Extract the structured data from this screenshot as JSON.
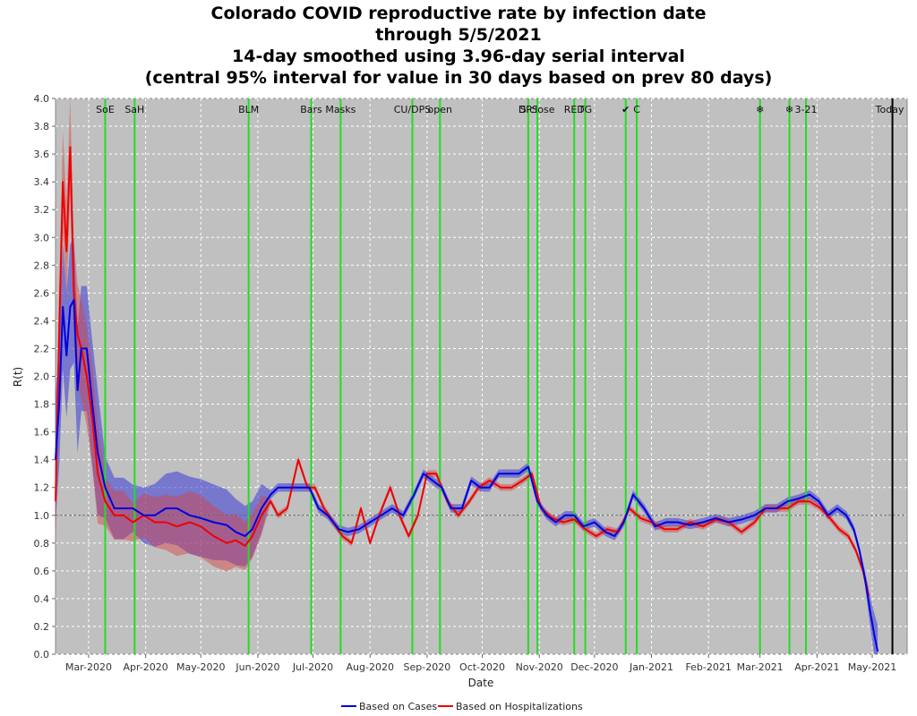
{
  "chart_data": {
    "type": "line",
    "title": "Colorado COVID reproductive rate by infection date",
    "subtitle_lines": [
      "through 5/5/2021",
      "14-day smoothed using 3.96-day serial interval",
      "(central 95% interval for value in 30 days based on prev 80 days)"
    ],
    "xlabel": "Date",
    "ylabel": "R(t)",
    "ylim": [
      0,
      4.0
    ],
    "xlim": [
      "2020-02-12",
      "2021-05-20"
    ],
    "y_ticks": [
      "0.0",
      "0.2",
      "0.4",
      "0.6",
      "0.8",
      "1.0",
      "1.2",
      "1.4",
      "1.6",
      "1.8",
      "2.0",
      "2.2",
      "2.4",
      "2.6",
      "2.8",
      "3.0",
      "3.2",
      "3.4",
      "3.6",
      "3.8",
      "4.0"
    ],
    "x_ticks": [
      {
        "date": "2020-03-01",
        "label": "Mar-2020"
      },
      {
        "date": "2020-04-01",
        "label": "Apr-2020"
      },
      {
        "date": "2020-05-01",
        "label": "May-2020"
      },
      {
        "date": "2020-06-01",
        "label": "Jun-2020"
      },
      {
        "date": "2020-07-01",
        "label": "Jul-2020"
      },
      {
        "date": "2020-08-01",
        "label": "Aug-2020"
      },
      {
        "date": "2020-09-01",
        "label": "Sep-2020"
      },
      {
        "date": "2020-10-01",
        "label": "Oct-2020"
      },
      {
        "date": "2020-11-01",
        "label": "Nov-2020"
      },
      {
        "date": "2020-12-01",
        "label": "Dec-2020"
      },
      {
        "date": "2021-01-01",
        "label": "Jan-2021"
      },
      {
        "date": "2021-02-01",
        "label": "Feb-2021"
      },
      {
        "date": "2021-03-01",
        "label": "Mar-2021"
      },
      {
        "date": "2021-04-01",
        "label": "Apr-2021"
      },
      {
        "date": "2021-05-01",
        "label": "May-2021"
      }
    ],
    "reference_line": 1.0,
    "grid": true,
    "legend_position": "bottom-center",
    "events": [
      {
        "date": "2020-03-10",
        "label": "SoE"
      },
      {
        "date": "2020-03-26",
        "label": "SaH"
      },
      {
        "date": "2020-05-27",
        "label": "BLM"
      },
      {
        "date": "2020-06-30",
        "label": "Bars"
      },
      {
        "date": "2020-07-16",
        "label": "Masks"
      },
      {
        "date": "2020-08-24",
        "label": "CU/DPS"
      },
      {
        "date": "2020-09-08",
        "label": "open"
      },
      {
        "date": "2020-10-26",
        "label": "DPS"
      },
      {
        "date": "2020-10-31",
        "label": "S close"
      },
      {
        "date": "2020-11-20",
        "label": "RED"
      },
      {
        "date": "2020-11-26",
        "label": "TG"
      },
      {
        "date": "2020-12-18",
        "label": "✔"
      },
      {
        "date": "2020-12-24",
        "label": "C"
      },
      {
        "date": "2021-03-01",
        "label": "❄"
      },
      {
        "date": "2021-03-17",
        "label": "❄"
      },
      {
        "date": "2021-03-26",
        "label": "3-21"
      }
    ],
    "today": {
      "date": "2021-05-12",
      "label": "Today"
    },
    "series": [
      {
        "name": "Based on Cases",
        "color": "#0000dd",
        "x": [
          "2020-02-12",
          "2020-02-14",
          "2020-02-16",
          "2020-02-18",
          "2020-02-20",
          "2020-02-22",
          "2020-02-24",
          "2020-02-26",
          "2020-02-29",
          "2020-03-03",
          "2020-03-06",
          "2020-03-10",
          "2020-03-15",
          "2020-03-20",
          "2020-03-25",
          "2020-03-31",
          "2020-04-06",
          "2020-04-12",
          "2020-04-18",
          "2020-04-25",
          "2020-05-01",
          "2020-05-08",
          "2020-05-15",
          "2020-05-20",
          "2020-05-25",
          "2020-05-29",
          "2020-06-03",
          "2020-06-08",
          "2020-06-12",
          "2020-06-17",
          "2020-06-23",
          "2020-06-29",
          "2020-07-04",
          "2020-07-09",
          "2020-07-15",
          "2020-07-20",
          "2020-07-26",
          "2020-08-01",
          "2020-08-07",
          "2020-08-13",
          "2020-08-19",
          "2020-08-25",
          "2020-08-30",
          "2020-09-04",
          "2020-09-09",
          "2020-09-14",
          "2020-09-20",
          "2020-09-25",
          "2020-09-30",
          "2020-10-05",
          "2020-10-10",
          "2020-10-16",
          "2020-10-21",
          "2020-10-26",
          "2020-10-31",
          "2020-11-05",
          "2020-11-10",
          "2020-11-15",
          "2020-11-20",
          "2020-11-25",
          "2020-12-01",
          "2020-12-07",
          "2020-12-12",
          "2020-12-17",
          "2020-12-22",
          "2020-12-28",
          "2021-01-03",
          "2021-01-09",
          "2021-01-15",
          "2021-01-22",
          "2021-01-29",
          "2021-02-05",
          "2021-02-12",
          "2021-02-19",
          "2021-02-26",
          "2021-03-04",
          "2021-03-10",
          "2021-03-16",
          "2021-03-22",
          "2021-03-28",
          "2021-04-02",
          "2021-04-07",
          "2021-04-12",
          "2021-04-17",
          "2021-04-21",
          "2021-04-24",
          "2021-04-27",
          "2021-04-30",
          "2021-05-02",
          "2021-05-04"
        ],
        "y": [
          1.4,
          1.8,
          2.5,
          2.15,
          2.5,
          2.55,
          1.9,
          2.2,
          2.2,
          1.8,
          1.45,
          1.2,
          1.05,
          1.05,
          1.05,
          1.0,
          1.0,
          1.05,
          1.05,
          1.0,
          0.98,
          0.95,
          0.93,
          0.88,
          0.85,
          0.9,
          1.05,
          1.15,
          1.2,
          1.2,
          1.2,
          1.2,
          1.05,
          1.0,
          0.9,
          0.88,
          0.9,
          0.95,
          1.0,
          1.05,
          1.0,
          1.15,
          1.3,
          1.25,
          1.2,
          1.05,
          1.05,
          1.25,
          1.2,
          1.2,
          1.3,
          1.3,
          1.3,
          1.35,
          1.1,
          1.0,
          0.95,
          1.0,
          1.0,
          0.92,
          0.95,
          0.88,
          0.85,
          0.95,
          1.15,
          1.05,
          0.92,
          0.95,
          0.95,
          0.93,
          0.95,
          0.98,
          0.95,
          0.97,
          1.0,
          1.05,
          1.05,
          1.1,
          1.12,
          1.15,
          1.1,
          1.0,
          1.05,
          1.0,
          0.9,
          0.75,
          0.55,
          0.3,
          0.15,
          0.02
        ]
      },
      {
        "name": "Based on Hospitalizations",
        "color": "#ee0000",
        "x": [
          "2020-02-12",
          "2020-02-14",
          "2020-02-16",
          "2020-02-18",
          "2020-02-20",
          "2020-02-22",
          "2020-02-24",
          "2020-02-26",
          "2020-02-29",
          "2020-03-03",
          "2020-03-06",
          "2020-03-10",
          "2020-03-15",
          "2020-03-20",
          "2020-03-25",
          "2020-03-31",
          "2020-04-06",
          "2020-04-12",
          "2020-04-18",
          "2020-04-25",
          "2020-05-01",
          "2020-05-08",
          "2020-05-15",
          "2020-05-20",
          "2020-05-25",
          "2020-05-29",
          "2020-06-03",
          "2020-06-08",
          "2020-06-12",
          "2020-06-17",
          "2020-06-23",
          "2020-06-28",
          "2020-07-02",
          "2020-07-07",
          "2020-07-12",
          "2020-07-17",
          "2020-07-22",
          "2020-07-27",
          "2020-08-01",
          "2020-08-06",
          "2020-08-12",
          "2020-08-17",
          "2020-08-22",
          "2020-08-27",
          "2020-09-01",
          "2020-09-06",
          "2020-09-12",
          "2020-09-18",
          "2020-09-24",
          "2020-09-29",
          "2020-10-05",
          "2020-10-11",
          "2020-10-17",
          "2020-10-23",
          "2020-10-28",
          "2020-11-02",
          "2020-11-08",
          "2020-11-14",
          "2020-11-20",
          "2020-11-26",
          "2020-12-02",
          "2020-12-08",
          "2020-12-14",
          "2020-12-20",
          "2020-12-26",
          "2021-01-01",
          "2021-01-08",
          "2021-01-15",
          "2021-01-22",
          "2021-01-29",
          "2021-02-05",
          "2021-02-12",
          "2021-02-19",
          "2021-02-26",
          "2021-03-04",
          "2021-03-10",
          "2021-03-16",
          "2021-03-22",
          "2021-03-28",
          "2021-04-03",
          "2021-04-08",
          "2021-04-13",
          "2021-04-18",
          "2021-04-22",
          "2021-04-26",
          "2021-04-29"
        ],
        "y": [
          1.1,
          2.3,
          3.4,
          2.9,
          3.65,
          2.6,
          2.3,
          2.2,
          2.0,
          1.7,
          1.3,
          1.1,
          1.0,
          1.0,
          0.95,
          1.0,
          0.95,
          0.95,
          0.92,
          0.95,
          0.92,
          0.85,
          0.8,
          0.82,
          0.78,
          0.85,
          1.0,
          1.1,
          1.0,
          1.05,
          1.4,
          1.2,
          1.2,
          1.05,
          0.95,
          0.85,
          0.8,
          1.05,
          0.8,
          1.0,
          1.2,
          1.0,
          0.85,
          1.0,
          1.3,
          1.3,
          1.1,
          1.0,
          1.1,
          1.2,
          1.25,
          1.2,
          1.2,
          1.25,
          1.3,
          1.05,
          0.98,
          0.95,
          0.97,
          0.9,
          0.85,
          0.9,
          0.88,
          1.05,
          0.98,
          0.95,
          0.9,
          0.9,
          0.95,
          0.92,
          0.97,
          0.95,
          0.88,
          0.95,
          1.05,
          1.05,
          1.05,
          1.1,
          1.1,
          1.05,
          0.98,
          0.9,
          0.85,
          0.75,
          0.6,
          0.42
        ]
      }
    ]
  }
}
